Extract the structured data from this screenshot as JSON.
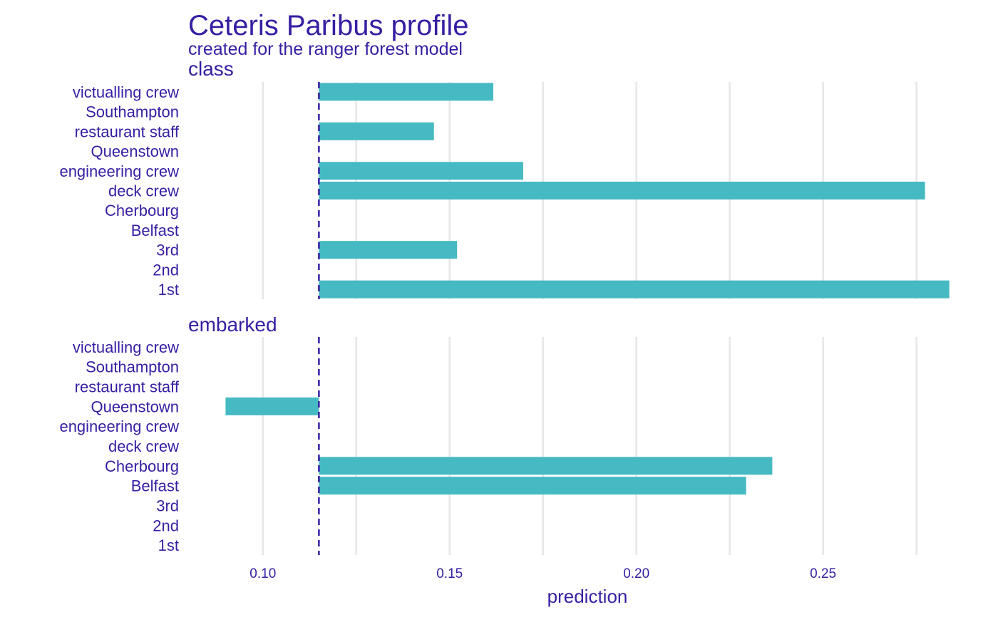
{
  "chart_data": {
    "type": "bar",
    "title": "Ceteris Paribus profile",
    "subtitle": "created for the ranger forest model",
    "xlabel": "prediction",
    "ylabel": "",
    "baseline": 0.115,
    "xlim": [
      0.08,
      0.285
    ],
    "x_ticks": [
      0.1,
      0.15,
      0.2,
      0.25
    ],
    "x_tick_labels": [
      "0.10",
      "0.15",
      "0.20",
      "0.25"
    ],
    "grid": true,
    "colors": {
      "bar": "#46BAC2",
      "text": "#371EA3",
      "baseline": "#371EA3",
      "grid": "#E6E6E6"
    },
    "categories": [
      "victualling crew",
      "Southampton",
      "restaurant staff",
      "Queenstown",
      "engineering crew",
      "deck crew",
      "Cherbourg",
      "Belfast",
      "3rd",
      "2nd",
      "1st"
    ],
    "facets": [
      {
        "name": "class",
        "values": [
          0.1617,
          null,
          0.1458,
          null,
          0.1697,
          0.2773,
          null,
          null,
          0.152,
          null,
          0.2838
        ]
      },
      {
        "name": "embarked",
        "values": [
          null,
          null,
          null,
          0.09,
          null,
          null,
          0.2364,
          0.2294,
          null,
          null,
          null
        ]
      }
    ]
  }
}
